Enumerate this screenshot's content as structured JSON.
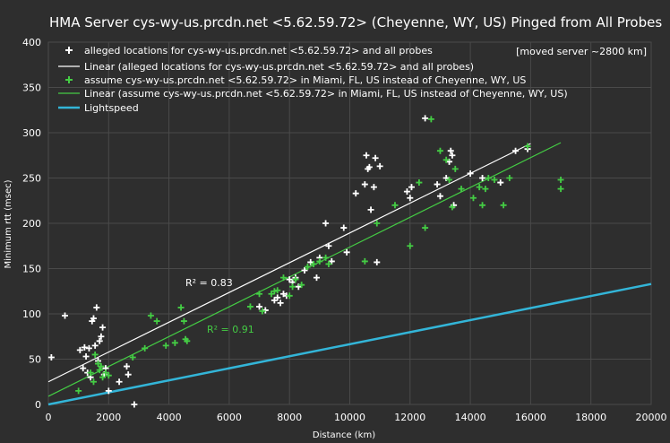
{
  "chart_data": {
    "type": "scatter",
    "title": "HMA Server cys-wy-us.prcdn.net <5.62.59.72> (Cheyenne, WY, US) Pinged from All Probes",
    "xlabel": "Distance (km)",
    "ylabel": "Minimum rtt (msec)",
    "xlim": [
      0,
      20000
    ],
    "ylim": [
      0,
      400
    ],
    "x_ticks": [
      "0",
      "2000",
      "4000",
      "6000",
      "8000",
      "10000",
      "12000",
      "14000",
      "16000",
      "18000",
      "20000"
    ],
    "y_ticks": [
      "0",
      "50",
      "100",
      "150",
      "200",
      "250",
      "300",
      "350",
      "400"
    ],
    "grid": true,
    "legend_position": "top-left",
    "annotation": "[moved server ~2800 km]",
    "legend": [
      "alleged locations for cys-wy-us.prcdn.net <5.62.59.72> and all probes",
      "Linear (alleged locations for cys-wy-us.prcdn.net <5.62.59.72> and all probes)",
      "assume cys-wy-us.prcdn.net <5.62.59.72> in Miami, FL, US instead of Cheyenne, WY, US",
      "Linear (assume cys-wy-us.prcdn.net <5.62.59.72> in Miami, FL, US instead of Cheyenne, WY, US)",
      "Lightspeed"
    ],
    "r2_labels": [
      "R² = 0.83",
      "R² = 0.91"
    ],
    "series": [
      {
        "name": "alleged locations for cys-wy-us.prcdn.net <5.62.59.72> and all probes",
        "color": "#ffffff",
        "marker": "plus",
        "points": [
          [
            100,
            52
          ],
          [
            550,
            98
          ],
          [
            1050,
            60
          ],
          [
            1150,
            40
          ],
          [
            1200,
            63
          ],
          [
            1250,
            53
          ],
          [
            1300,
            35
          ],
          [
            1350,
            62
          ],
          [
            1400,
            30
          ],
          [
            1450,
            92
          ],
          [
            1500,
            95
          ],
          [
            1550,
            65
          ],
          [
            1600,
            107
          ],
          [
            1650,
            48
          ],
          [
            1700,
            70
          ],
          [
            1750,
            75
          ],
          [
            1800,
            85
          ],
          [
            1850,
            33
          ],
          [
            1900,
            40
          ],
          [
            2000,
            15
          ],
          [
            2350,
            25
          ],
          [
            2600,
            42
          ],
          [
            2650,
            33
          ],
          [
            2850,
            0
          ],
          [
            7000,
            108
          ],
          [
            7200,
            104
          ],
          [
            7500,
            115
          ],
          [
            7600,
            118
          ],
          [
            7700,
            112
          ],
          [
            7800,
            122
          ],
          [
            7900,
            120
          ],
          [
            8000,
            138
          ],
          [
            8100,
            135
          ],
          [
            8200,
            140
          ],
          [
            8300,
            130
          ],
          [
            8500,
            148
          ],
          [
            8700,
            157
          ],
          [
            8900,
            140
          ],
          [
            9000,
            162
          ],
          [
            9200,
            200
          ],
          [
            9300,
            175
          ],
          [
            9400,
            158
          ],
          [
            9800,
            195
          ],
          [
            9900,
            168
          ],
          [
            10200,
            233
          ],
          [
            10500,
            243
          ],
          [
            10550,
            275
          ],
          [
            10600,
            260
          ],
          [
            10650,
            262
          ],
          [
            10700,
            215
          ],
          [
            10800,
            240
          ],
          [
            10850,
            272
          ],
          [
            10900,
            157
          ],
          [
            11000,
            263
          ],
          [
            11900,
            235
          ],
          [
            12000,
            228
          ],
          [
            12050,
            240
          ],
          [
            12500,
            316
          ],
          [
            12900,
            243
          ],
          [
            13000,
            230
          ],
          [
            13200,
            250
          ],
          [
            13300,
            268
          ],
          [
            13350,
            280
          ],
          [
            13400,
            275
          ],
          [
            13450,
            220
          ],
          [
            14000,
            255
          ],
          [
            14400,
            250
          ],
          [
            15000,
            245
          ],
          [
            15500,
            280
          ],
          [
            15900,
            282
          ]
        ]
      },
      {
        "name": "assume cys-wy-us.prcdn.net <5.62.59.72> in Miami, FL, US instead of Cheyenne, WY, US",
        "color": "#44cc44",
        "marker": "plus",
        "points": [
          [
            1000,
            15
          ],
          [
            1400,
            35
          ],
          [
            1500,
            25
          ],
          [
            1550,
            55
          ],
          [
            1650,
            45
          ],
          [
            1700,
            38
          ],
          [
            1750,
            42
          ],
          [
            1800,
            30
          ],
          [
            1900,
            35
          ],
          [
            2000,
            32
          ],
          [
            2800,
            52
          ],
          [
            3200,
            62
          ],
          [
            3400,
            98
          ],
          [
            3600,
            92
          ],
          [
            3900,
            65
          ],
          [
            4200,
            68
          ],
          [
            4400,
            107
          ],
          [
            4500,
            92
          ],
          [
            4550,
            72
          ],
          [
            4600,
            70
          ],
          [
            6700,
            108
          ],
          [
            7000,
            122
          ],
          [
            7100,
            103
          ],
          [
            7400,
            122
          ],
          [
            7500,
            125
          ],
          [
            7600,
            126
          ],
          [
            7800,
            140
          ],
          [
            8000,
            120
          ],
          [
            8100,
            130
          ],
          [
            8200,
            138
          ],
          [
            8400,
            132
          ],
          [
            8600,
            152
          ],
          [
            8800,
            155
          ],
          [
            9000,
            158
          ],
          [
            9200,
            162
          ],
          [
            9300,
            155
          ],
          [
            10500,
            158
          ],
          [
            10900,
            200
          ],
          [
            11500,
            220
          ],
          [
            12000,
            175
          ],
          [
            12300,
            245
          ],
          [
            12500,
            195
          ],
          [
            12700,
            315
          ],
          [
            13000,
            280
          ],
          [
            13200,
            270
          ],
          [
            13300,
            248
          ],
          [
            13400,
            218
          ],
          [
            13500,
            260
          ],
          [
            13700,
            238
          ],
          [
            14100,
            228
          ],
          [
            14300,
            240
          ],
          [
            14400,
            220
          ],
          [
            14500,
            238
          ],
          [
            14600,
            250
          ],
          [
            14800,
            248
          ],
          [
            15100,
            220
          ],
          [
            15300,
            250
          ],
          [
            15900,
            285
          ],
          [
            17000,
            248
          ],
          [
            17000,
            238
          ]
        ]
      }
    ],
    "trendlines": [
      {
        "name": "Linear (alleged)",
        "color": "#ffffff",
        "from": [
          0,
          25
        ],
        "to": [
          16000,
          288
        ]
      },
      {
        "name": "Linear (Miami)",
        "color": "#44cc44",
        "from": [
          0,
          9
        ],
        "to": [
          17000,
          289
        ]
      },
      {
        "name": "Lightspeed",
        "color": "#33b5d8",
        "from": [
          0,
          0
        ],
        "to": [
          20000,
          133
        ]
      }
    ]
  }
}
